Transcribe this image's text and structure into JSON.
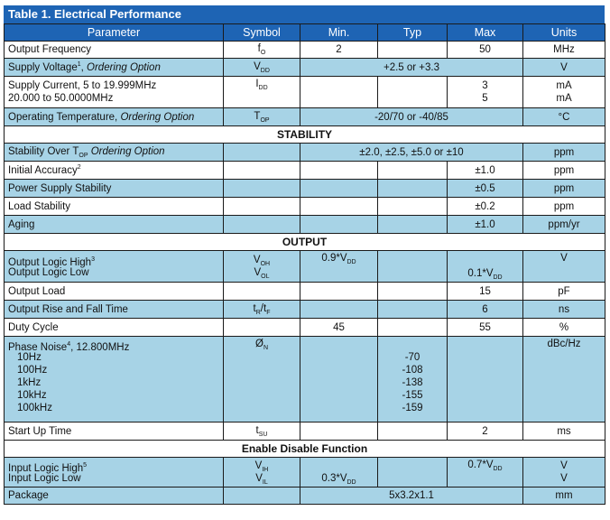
{
  "title": "Table 1. Electrical Performance",
  "headers": [
    "Parameter",
    "Symbol",
    "Min.",
    "Typ",
    "Max",
    "Units"
  ],
  "sections": {
    "stability": "STABILITY",
    "output": "OUTPUT",
    "enable": "Enable Disable Function"
  },
  "rows": {
    "output_frequency": {
      "param": "Output Frequency",
      "sym": "f",
      "sub": "O",
      "min": "2",
      "max": "50",
      "units": "MHz"
    },
    "supply_voltage": {
      "param": "Supply Voltage",
      "sup": "1",
      "sep": ", ",
      "opt": "Ordering Option",
      "sym": "V",
      "sub": "DD",
      "span": "+2.5 or +3.3",
      "units": "V"
    },
    "supply_current": {
      "param1": "Supply Current, 5 to 19.999MHz",
      "param2": "20.000 to 50.0000MHz",
      "sym": "I",
      "sub": "DD",
      "max1": "3",
      "max2": "5",
      "units1": "mA",
      "units2": "mA"
    },
    "operating_temp": {
      "param": "Operating Temperature, ",
      "opt": "Ordering Option",
      "sym": "T",
      "sub": "OP",
      "span": "-20/70  or -40/85",
      "units": "°C"
    },
    "stability_over": {
      "param": "Stability Over T",
      "sub": "OP",
      "opt": "  Ordering Option",
      "span": "±2.0, ±2.5, ±5.0 or ±10",
      "units": "ppm"
    },
    "initial_accuracy": {
      "param": "Initial Accuracy",
      "sup": "2",
      "max": "±1.0",
      "units": "ppm"
    },
    "power_supply": {
      "param": "Power Supply Stability",
      "max": "±0.5",
      "units": "ppm"
    },
    "load_stability": {
      "param": "Load Stability",
      "max": "±0.2",
      "units": "ppm"
    },
    "aging": {
      "param": "Aging",
      "max": "±1.0",
      "units": "ppm/yr"
    },
    "output_logic": {
      "param1": "Output Logic High",
      "sup1": "3",
      "param2": "Output Logic Low",
      "sym1": "V",
      "sub1": "OH",
      "sym2": "V",
      "sub2": "OL",
      "min": "0.9*V",
      "min_sub": "DD",
      "max": "0.1*V",
      "max_sub": "DD",
      "units": "V"
    },
    "output_load": {
      "param": "Output Load",
      "max": "15",
      "units": "pF"
    },
    "rise_fall": {
      "param": "Output Rise and Fall Time",
      "sym1": "t",
      "sub1": "R",
      "slash": "/",
      "sym2": "t",
      "sub2": "F",
      "max": "6",
      "units": "ns"
    },
    "duty_cycle": {
      "param": "Duty Cycle",
      "min": "45",
      "max": "55",
      "units": "%"
    },
    "phase_noise": {
      "param": "Phase Noise",
      "sup": "4",
      "suffix": ", 12.800MHz",
      "sym": "Ø",
      "sub": "N",
      "units": "dBc/Hz",
      "offsets": [
        "10Hz",
        "100Hz",
        "1kHz",
        "10kHz",
        "100kHz"
      ],
      "values": [
        "-70",
        "-108",
        "-138",
        "-155",
        "-159"
      ]
    },
    "start_up": {
      "param": "Start Up Time",
      "sym": "t",
      "sub": "SU",
      "max": "2",
      "units": "ms"
    },
    "input_logic": {
      "param1": "Input Logic High",
      "sup1": "5",
      "param2": "Input Logic Low",
      "sym1": "V",
      "sub1": "IH",
      "sym2": "V",
      "sub2": "IL",
      "min": "0.3*V",
      "min_sub": "DD",
      "max": "0.7*V",
      "max_sub": "DD",
      "units1": "V",
      "units2": "V"
    },
    "package": {
      "param": "Package",
      "span": "5x3.2x1.1",
      "units": "mm"
    }
  },
  "colors": {
    "header": "#1e64b4",
    "shaded": "#a7d3e6"
  }
}
